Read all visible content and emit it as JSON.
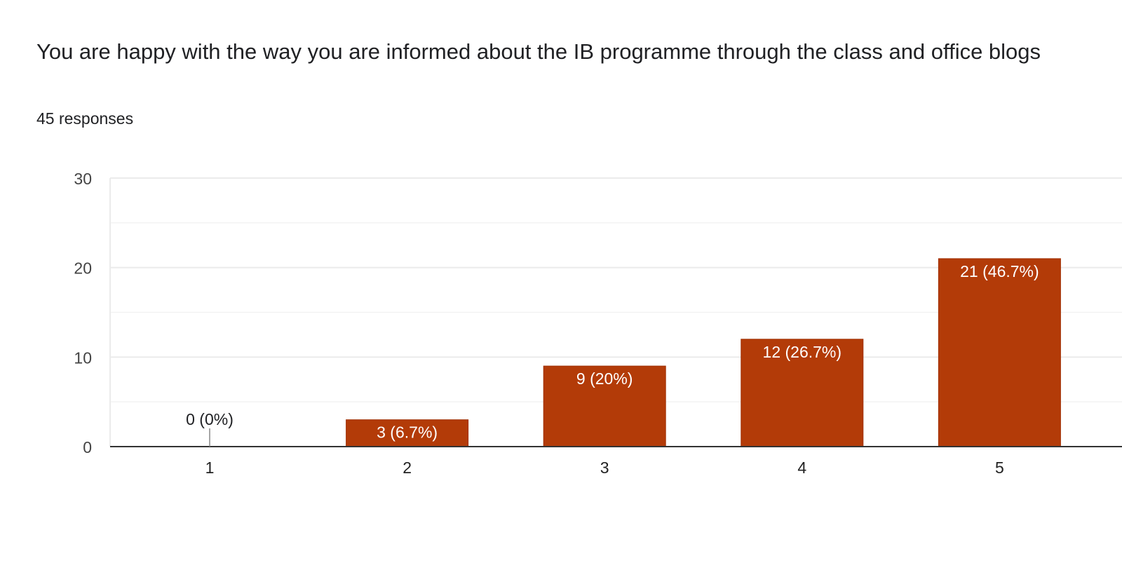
{
  "question": {
    "title": "You are happy with the way you are informed about the IB programme through the class and office blogs",
    "responses": "45 responses"
  },
  "chart_data": {
    "type": "bar",
    "categories": [
      "1",
      "2",
      "3",
      "4",
      "5"
    ],
    "values": [
      0,
      3,
      9,
      12,
      21
    ],
    "data_labels": [
      "0 (0%)",
      "3 (6.7%)",
      "9 (20%)",
      "12 (26.7%)",
      "21 (46.7%)"
    ],
    "ylim": [
      0,
      30
    ],
    "yticks": [
      0,
      10,
      20,
      30
    ],
    "ytick_labels": [
      "0",
      "10",
      "20",
      "30"
    ],
    "minor_gridlines": [
      5,
      15,
      25
    ],
    "grid": true,
    "xlabel": "",
    "ylabel": "",
    "colors": {
      "bar": "#b33b08",
      "bar_label": "#ffffff",
      "outside_label": "#202124",
      "gridline": "#ebebeb",
      "minor_gridline": "#f3f3f3",
      "axis": "#333333",
      "tick_label": "#444444"
    }
  }
}
